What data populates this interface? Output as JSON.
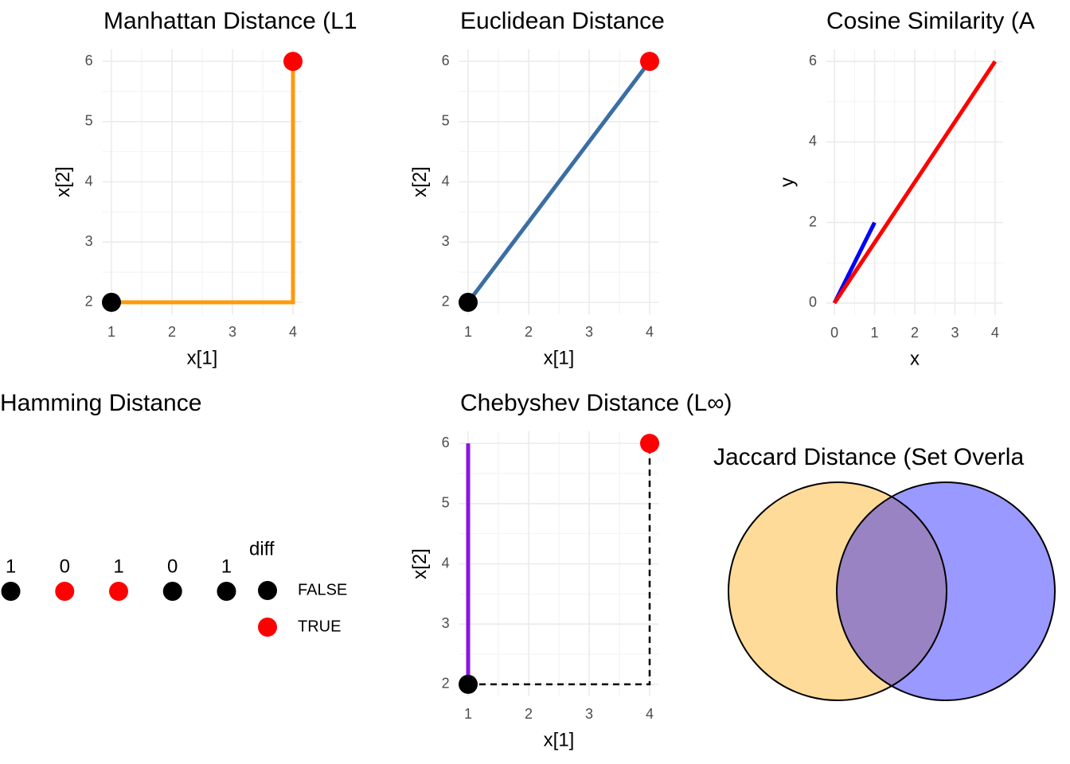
{
  "chart_data": [
    {
      "type": "line",
      "title": "Manhattan Distance (L1",
      "x_label": "x[1]",
      "y_label": "x[2]",
      "xlim": [
        0.85,
        4.15
      ],
      "ylim": [
        1.8,
        6.2
      ],
      "xticks": [
        1,
        2,
        3,
        4
      ],
      "yticks": [
        2,
        3,
        4,
        5,
        6
      ],
      "grid": true,
      "series": [
        {
          "color": "#ff9a0e",
          "x": [
            1,
            4,
            4
          ],
          "values": [
            2,
            2,
            6
          ]
        }
      ],
      "points": [
        {
          "x": 1,
          "y": 2,
          "color": "black"
        },
        {
          "x": 4,
          "y": 6,
          "color": "red"
        }
      ]
    },
    {
      "type": "line",
      "title": "Euclidean Distance",
      "x_label": "x[1]",
      "y_label": "x[2]",
      "xlim": [
        0.85,
        4.15
      ],
      "ylim": [
        1.8,
        6.2
      ],
      "xticks": [
        1,
        2,
        3,
        4
      ],
      "yticks": [
        2,
        3,
        4,
        5,
        6
      ],
      "grid": true,
      "series": [
        {
          "color": "#3a6ea5",
          "x": [
            1,
            4
          ],
          "values": [
            2,
            6
          ]
        }
      ],
      "points": [
        {
          "x": 1,
          "y": 2,
          "color": "black"
        },
        {
          "x": 4,
          "y": 6,
          "color": "red"
        }
      ]
    },
    {
      "type": "line",
      "title": "Cosine Similarity (A",
      "x_label": "x",
      "y_label": "y",
      "xlim": [
        -0.2,
        4.2
      ],
      "ylim": [
        -0.3,
        6.3
      ],
      "xticks": [
        0,
        1,
        2,
        3,
        4
      ],
      "yticks": [
        0,
        2,
        4,
        6
      ],
      "grid": true,
      "series": [
        {
          "color": "blue",
          "x": [
            0,
            1
          ],
          "values": [
            0,
            2
          ]
        },
        {
          "color": "red",
          "x": [
            0,
            4
          ],
          "values": [
            0,
            6
          ]
        }
      ],
      "points": []
    },
    {
      "type": "dots",
      "title": "Hamming Distance",
      "xlim": [
        0.8,
        5.2
      ],
      "x": [
        1,
        2,
        3,
        4,
        5
      ],
      "values": [
        1,
        0,
        1,
        0,
        1
      ],
      "diff": [
        false,
        true,
        true,
        false,
        false
      ],
      "legend_title": "diff",
      "series": [
        {
          "name": "FALSE",
          "color": "black"
        },
        {
          "name": "TRUE",
          "color": "red"
        }
      ]
    },
    {
      "type": "line",
      "title": "Chebyshev Distance (L∞)",
      "x_label": "x[1]",
      "y_label": "x[2]",
      "xlim": [
        0.85,
        4.15
      ],
      "ylim": [
        1.8,
        6.2
      ],
      "xticks": [
        1,
        2,
        3,
        4
      ],
      "yticks": [
        2,
        3,
        4,
        5,
        6
      ],
      "grid": true,
      "series": [
        {
          "color": "#8a14e6",
          "x": [
            1,
            1
          ],
          "values": [
            2,
            6
          ]
        },
        {
          "color": "black",
          "dashed": true,
          "x": [
            1,
            4,
            4
          ],
          "values": [
            2,
            2,
            6
          ]
        }
      ],
      "points": [
        {
          "x": 1,
          "y": 2,
          "color": "black"
        },
        {
          "x": 4,
          "y": 6,
          "color": "red"
        }
      ]
    },
    {
      "type": "venn",
      "title": "Jaccard Distance (Set Overla",
      "sets": [
        {
          "color": "orange"
        },
        {
          "color": "blue"
        }
      ],
      "opacity": 0.4
    }
  ]
}
